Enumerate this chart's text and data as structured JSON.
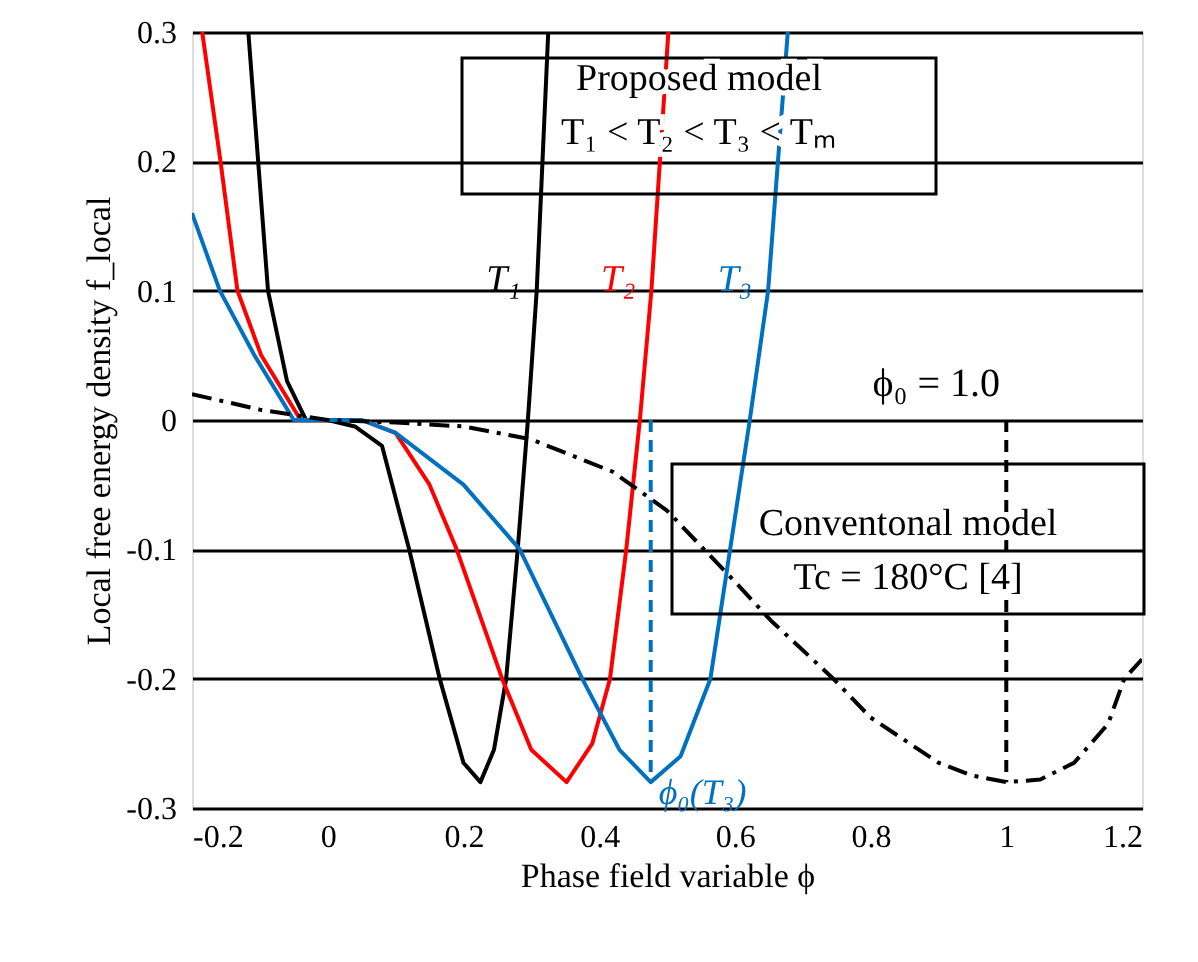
{
  "chart_data": {
    "type": "line",
    "xlabel": "Phase field variable  ϕ",
    "ylabel": "Local free energy density  f_local",
    "xlim": [
      -0.2,
      1.2
    ],
    "xticks": [
      -0.2,
      0,
      0.2,
      0.4,
      0.6,
      0.8,
      1,
      1.2
    ],
    "ylim": [
      -0.3,
      0.3
    ],
    "yticks": [
      -0.3,
      -0.2,
      -0.1,
      0,
      0.1,
      0.2,
      0.3
    ],
    "grid": "y",
    "marker": "none",
    "series": [
      {
        "name": "T₁",
        "color": "#000000",
        "line_style": "solid",
        "x": [
          -0.117,
          -0.088,
          -0.06,
          -0.032,
          0,
          0.04,
          0.08,
          0.12,
          0.165,
          0.2,
          0.225,
          0.245,
          0.263,
          0.28,
          0.295,
          0.308,
          0.325
        ],
        "values": [
          0.3,
          0.1,
          0.03,
          0,
          0,
          -0.005,
          -0.02,
          -0.1,
          -0.2,
          -0.265,
          -0.28,
          -0.255,
          -0.2,
          -0.1,
          0,
          0.1,
          0.3
        ]
      },
      {
        "name": "T₂",
        "color": "#ff0000",
        "line_style": "solid",
        "x": [
          -0.185,
          -0.158,
          -0.133,
          -0.098,
          -0.04,
          0,
          0.05,
          0.1,
          0.15,
          0.19,
          0.257,
          0.3,
          0.352,
          0.39,
          0.416,
          0.44,
          0.46,
          0.477,
          0.502
        ],
        "values": [
          0.3,
          0.2,
          0.1,
          0.05,
          0,
          0,
          0,
          -0.01,
          -0.05,
          -0.1,
          -0.2,
          -0.255,
          -0.28,
          -0.25,
          -0.2,
          -0.1,
          0,
          0.1,
          0.3
        ]
      },
      {
        "name": "T₃",
        "color": "#0070c0",
        "line_style": "solid",
        "x": [
          -0.2,
          -0.159,
          -0.108,
          -0.05,
          0,
          0.05,
          0.1,
          0.2,
          0.283,
          0.375,
          0.43,
          0.476,
          0.52,
          0.564,
          0.593,
          0.622,
          0.649,
          0.678
        ],
        "values": [
          0.16,
          0.1,
          0.05,
          0,
          0,
          0,
          -0.01,
          -0.05,
          -0.1,
          -0.2,
          -0.255,
          -0.28,
          -0.26,
          -0.2,
          -0.1,
          0,
          0.1,
          0.3
        ]
      },
      {
        "color": "#000000",
        "line_style": "dashdot",
        "x": [
          -0.2,
          -0.1,
          0,
          0.1,
          0.2,
          0.3,
          0.42,
          0.5,
          0.6,
          0.653,
          0.745,
          0.8,
          0.9,
          0.95,
          1.0,
          1.05,
          1.1,
          1.15,
          1.174,
          1.2
        ],
        "values": [
          0.02,
          0.008,
          0,
          -0.002,
          -0.005,
          -0.015,
          -0.04,
          -0.07,
          -0.125,
          -0.155,
          -0.2,
          -0.23,
          -0.265,
          -0.275,
          -0.28,
          -0.278,
          -0.265,
          -0.235,
          -0.2,
          -0.185
        ]
      },
      {
        "name": "ϕ₀(T₃)",
        "color": "#0070c0",
        "line_style": "dashed",
        "x": [
          0.476,
          0.476
        ],
        "values": [
          0,
          -0.28
        ]
      },
      {
        "color": "#000000",
        "line_style": "dashed",
        "x": [
          1.0,
          1.0
        ],
        "values": [
          0,
          -0.28
        ]
      }
    ],
    "annotations": [
      "Proposed model\nT₁ < T₂ < T₃ < Tₘ",
      "Conventonal model\nTc = 180°C [4]",
      {
        "text": "ϕ₀ = 1.0",
        "x": 1.0,
        "y": 0
      }
    ]
  }
}
